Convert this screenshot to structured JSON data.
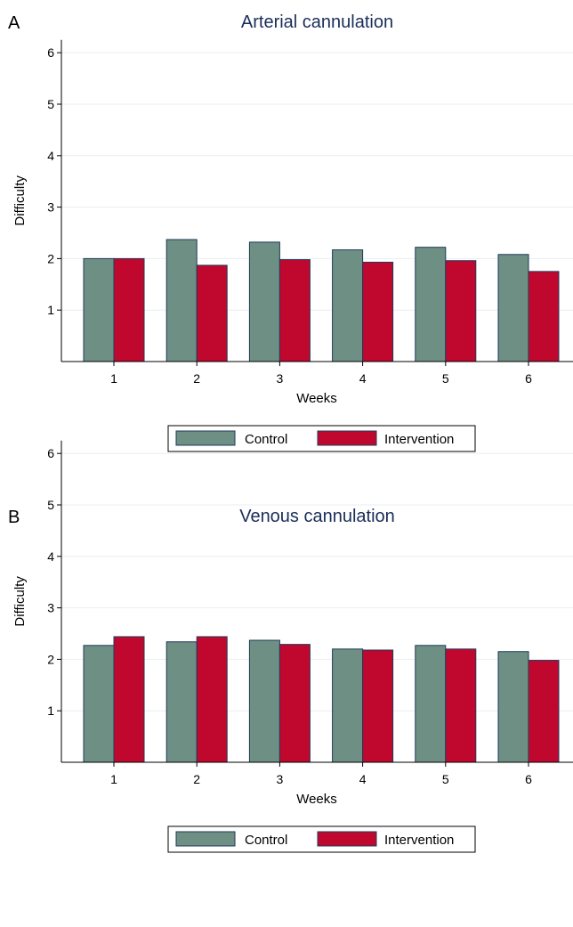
{
  "colors": {
    "control": "#6e8f83",
    "intervention": "#c0082f",
    "bar_stroke": "#1f3a5a",
    "title": "#1a2e5a",
    "grid": "#e9eef2",
    "axis": "#000000"
  },
  "chart_data": [
    {
      "type": "bar",
      "panel_label": "A",
      "title": "Arterial cannulation",
      "xlabel": "Weeks",
      "ylabel": "Difficulty",
      "categories": [
        "1",
        "2",
        "3",
        "4",
        "5",
        "6"
      ],
      "y_ticks": [
        "1",
        "2",
        "3",
        "4",
        "5",
        "6"
      ],
      "ylim": [
        0,
        6.25
      ],
      "grid": true,
      "legend_position": "bottom",
      "series": [
        {
          "name": "Control",
          "values": [
            2.0,
            2.37,
            2.32,
            2.17,
            2.22,
            2.08
          ]
        },
        {
          "name": "Intervention",
          "values": [
            2.0,
            1.87,
            1.98,
            1.93,
            1.96,
            1.75
          ]
        }
      ]
    },
    {
      "type": "bar",
      "panel_label": "B",
      "title": "Venous cannulation",
      "xlabel": "Weeks",
      "ylabel": "Difficulty",
      "categories": [
        "1",
        "2",
        "3",
        "4",
        "5",
        "6"
      ],
      "y_ticks": [
        "1",
        "2",
        "3",
        "4",
        "5",
        "6"
      ],
      "ylim": [
        0,
        6.25
      ],
      "grid": true,
      "legend_position": "bottom",
      "series": [
        {
          "name": "Control",
          "values": [
            2.27,
            2.34,
            2.37,
            2.2,
            2.27,
            2.15
          ]
        },
        {
          "name": "Intervention",
          "values": [
            2.44,
            2.44,
            2.29,
            2.18,
            2.2,
            1.98
          ]
        }
      ]
    }
  ]
}
